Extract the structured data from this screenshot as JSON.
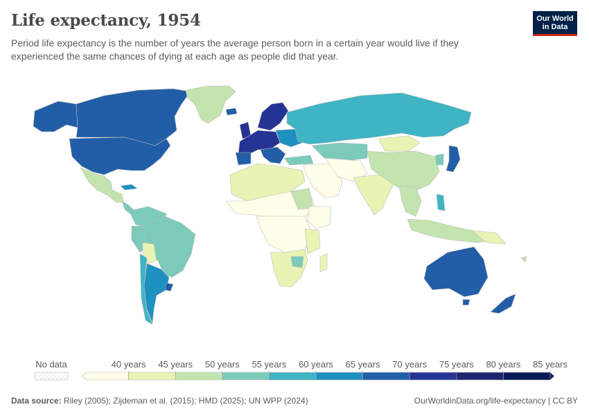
{
  "header": {
    "title": "Life expectancy, 1954",
    "subtitle": "Period life expectancy is the number of years the average person born in a certain year would live if they experienced the same chances of dying at each age as people did that year."
  },
  "logo": {
    "line1": "Our World",
    "line2": "in Data"
  },
  "legend": {
    "no_data_label": "No data",
    "ticks": [
      "40 years",
      "45 years",
      "50 years",
      "55 years",
      "60 years",
      "65 years",
      "70 years",
      "75 years",
      "80 years",
      "85 years"
    ],
    "colors": [
      "#fefee9",
      "#e9f3b3",
      "#c3e4af",
      "#7ccbba",
      "#3fb4c4",
      "#1d91c0",
      "#225ea8",
      "#253494",
      "#1e2570",
      "#081d58"
    ]
  },
  "footer": {
    "source_label": "Data source:",
    "source_text": "Riley (2005); Zijdeman et al. (2015); HMD (2025); UN WPP (2024)",
    "url": "OurWorldinData.org/life-expectancy | CC BY"
  },
  "colors": {
    "title": "#4a4a4a",
    "text": "#5b5b5b",
    "logo_bg": "#002147",
    "logo_accent": "#ce261e",
    "border": "#bbbbbb"
  }
}
